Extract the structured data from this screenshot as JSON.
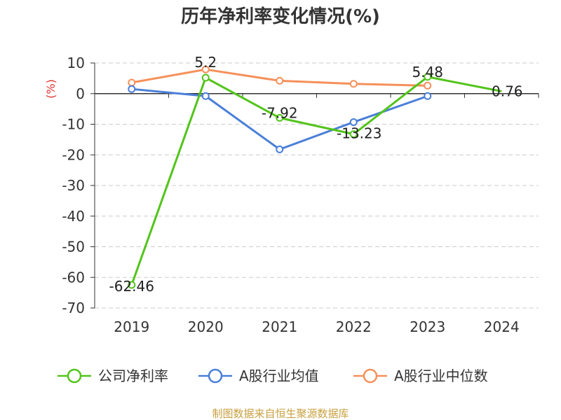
{
  "chart_data": {
    "type": "line",
    "title": "历年净利率变化情况(%)",
    "ylabel": "(%)",
    "categories": [
      "2019",
      "2020",
      "2021",
      "2022",
      "2023",
      "2024"
    ],
    "ylim": [
      -70,
      10
    ],
    "yticks": [
      10,
      0,
      -10,
      -20,
      -30,
      -40,
      -50,
      -60,
      -70
    ],
    "grid": true,
    "legend_position": "bottom",
    "series": [
      {
        "name": "公司净利率",
        "color": "#52c41a",
        "values": [
          -62.46,
          5.2,
          -7.92,
          -13.23,
          5.48,
          0.76
        ],
        "labels": [
          "-62.46",
          "5.2",
          "-7.92",
          "-13.23",
          "5.48",
          "0.76"
        ]
      },
      {
        "name": "A股行业均值",
        "color": "#4a7fd8",
        "values": [
          1.5,
          -0.8,
          -18.2,
          -9.3,
          -0.8,
          null
        ]
      },
      {
        "name": "A股行业中位数",
        "color": "#f5905a",
        "values": [
          3.6,
          7.9,
          4.2,
          3.2,
          2.6,
          null
        ]
      }
    ]
  },
  "source": "制图数据来自恒生聚源数据库"
}
